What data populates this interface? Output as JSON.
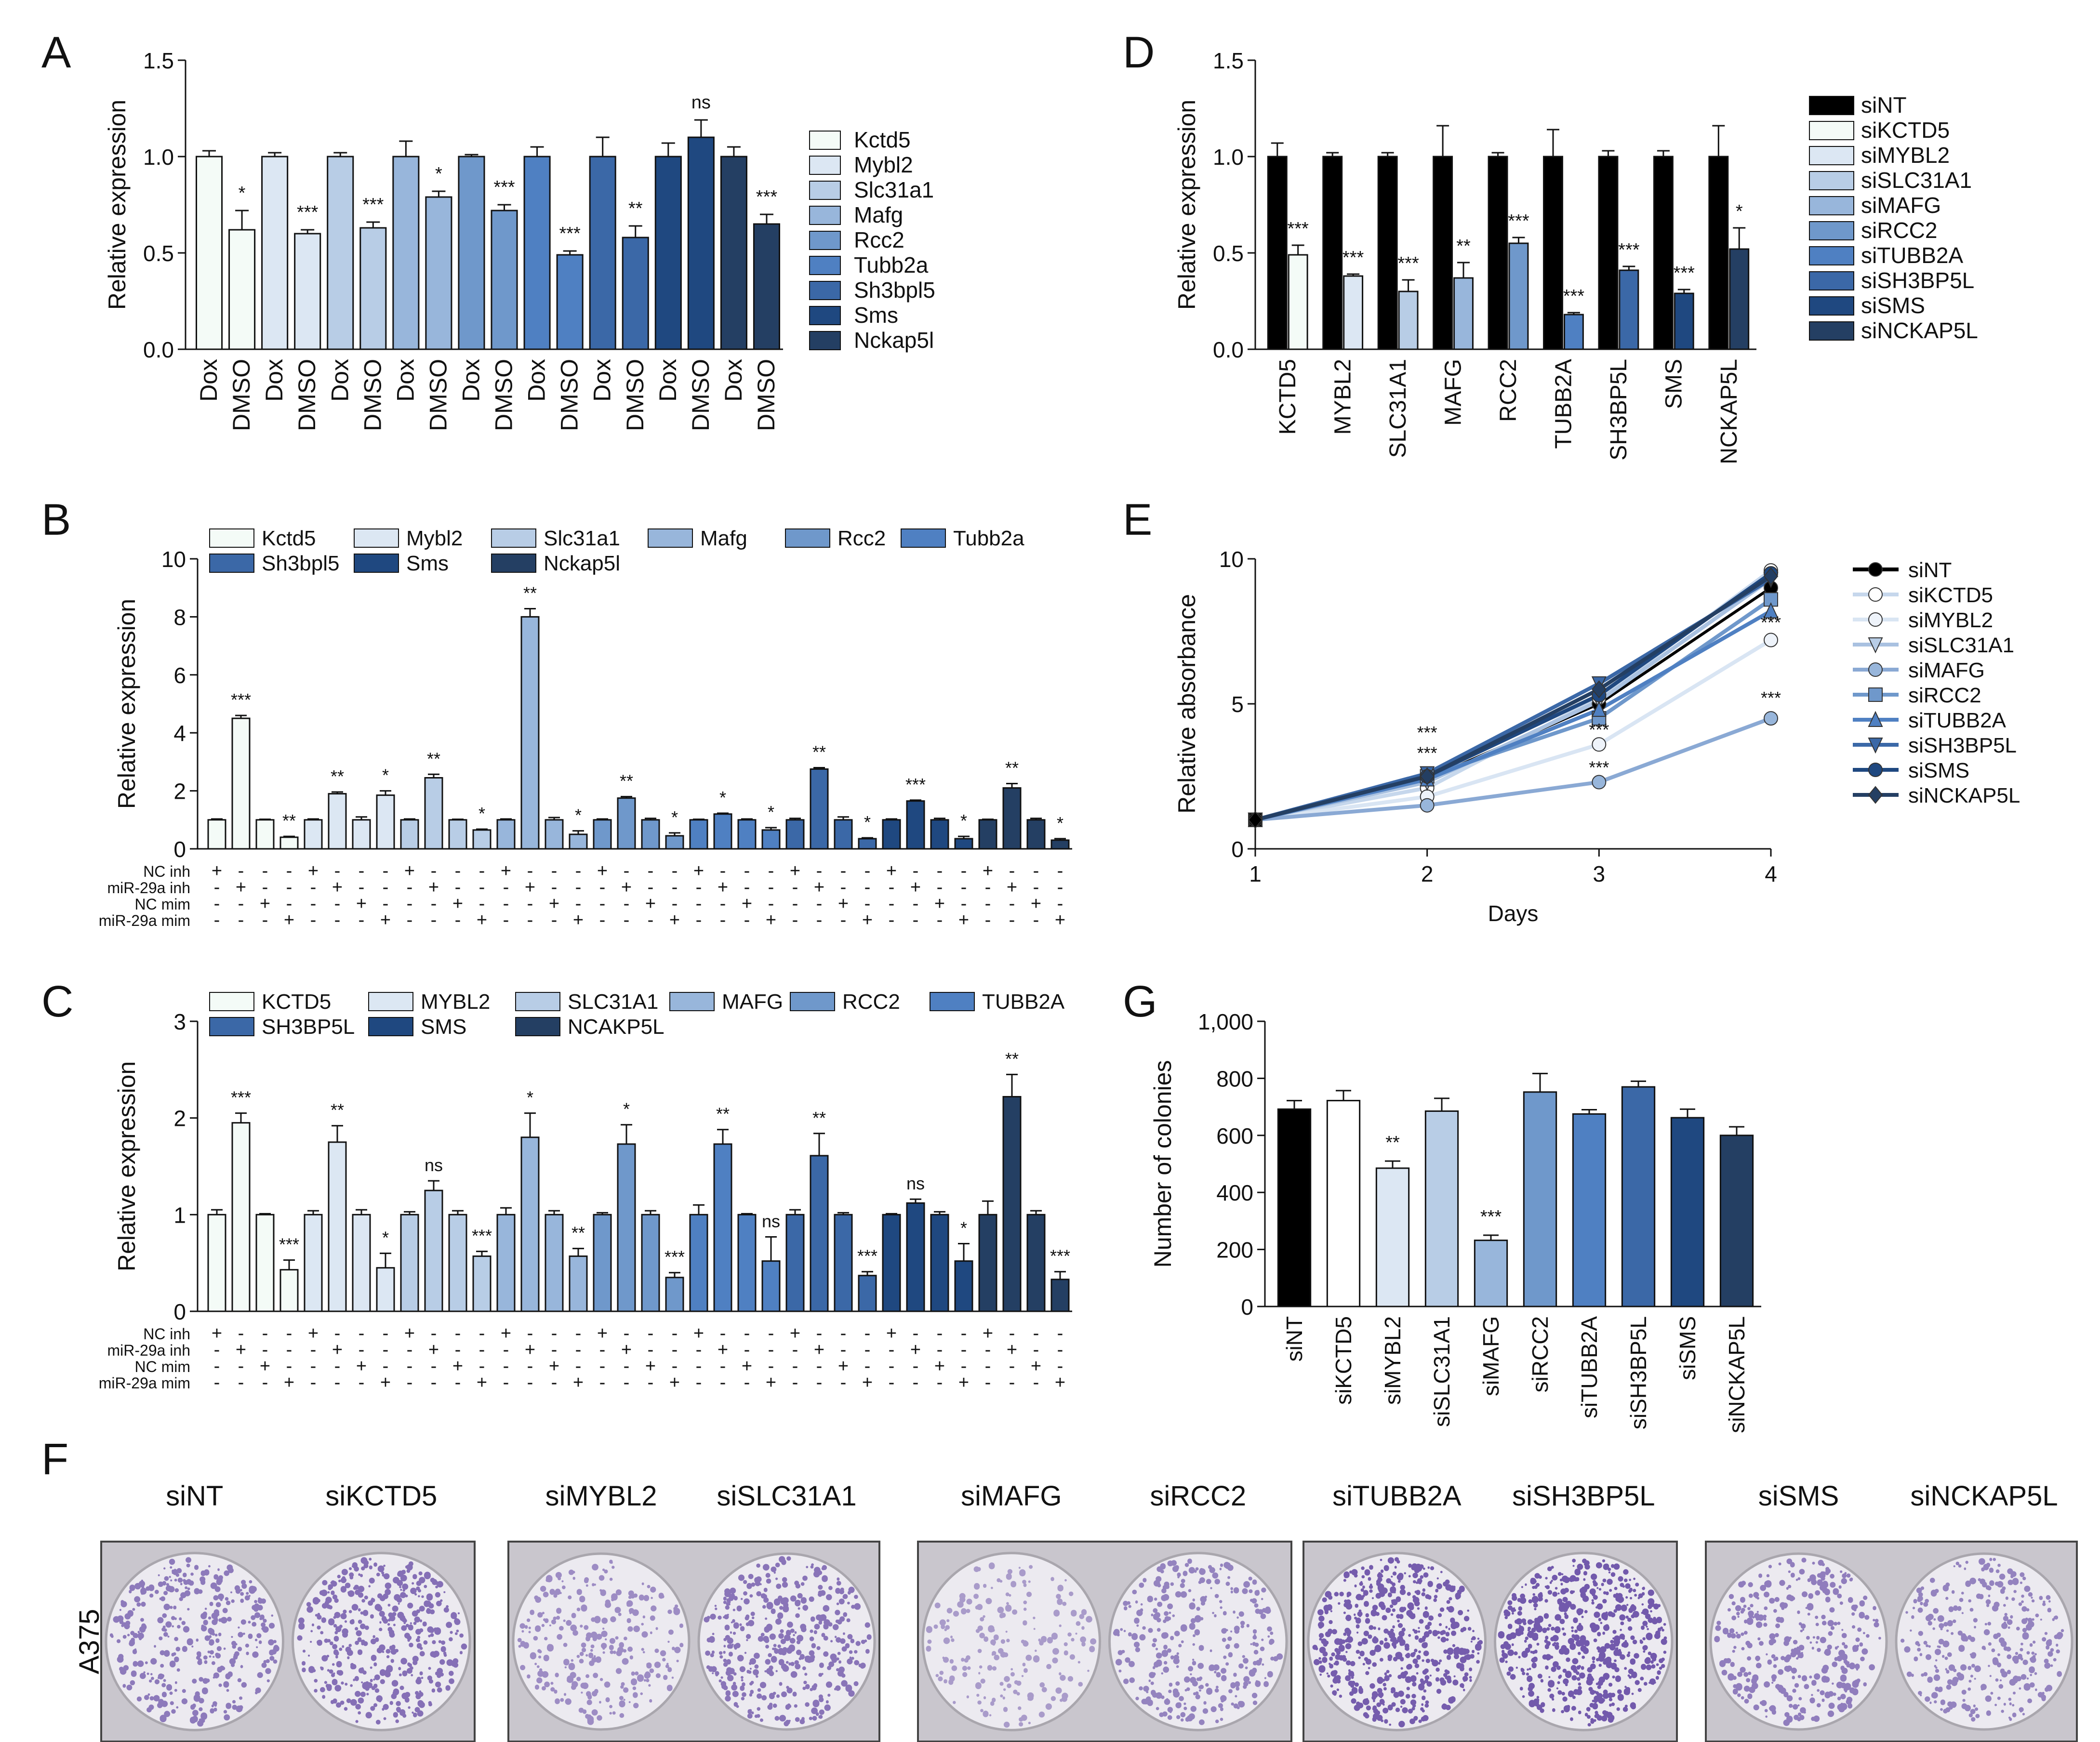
{
  "palette": [
    "#f4fbf7",
    "#dce7f3",
    "#b8cde6",
    "#98b6db",
    "#6f98cb",
    "#4f80c2",
    "#3b68a7",
    "#1f4880",
    "#243f63"
  ],
  "ink": "#111111",
  "siNT_color": "#000000",
  "letters": {
    "A": "A",
    "B": "B",
    "C": "C",
    "D": "D",
    "E": "E",
    "F": "F",
    "G": "G"
  },
  "plates": {
    "row_label": "A375",
    "labels": [
      "siNT",
      "siKCTD5",
      "siMYBL2",
      "siSLC31A1",
      "siMAFG",
      "siRCC2",
      "siTUBB2A",
      "siSH3BP5L",
      "siSMS",
      "siNCKAP5L"
    ],
    "stain": "#5a3d9e",
    "density": [
      0.55,
      0.65,
      0.35,
      0.6,
      0.2,
      0.45,
      0.85,
      0.9,
      0.5,
      0.45
    ]
  },
  "chart_data": [
    {
      "id": "A",
      "type": "bar",
      "ylabel": "Relative expression",
      "ylim": [
        0,
        1.5
      ],
      "yticks": [
        "0.0",
        "0.5",
        "1.0",
        "1.5"
      ],
      "genes": [
        "Kctd5",
        "Mybl2",
        "Slc31a1",
        "Mafg",
        "Rcc2",
        "Tubb2a",
        "Sh3bpl5",
        "Sms",
        "Nckap5l"
      ],
      "bar_labels": [
        "Dox",
        "DMSO"
      ],
      "values": [
        [
          1.0,
          0.62
        ],
        [
          1.0,
          0.6
        ],
        [
          1.0,
          0.63
        ],
        [
          1.0,
          0.79
        ],
        [
          1.0,
          0.72
        ],
        [
          1.0,
          0.49
        ],
        [
          1.0,
          0.58
        ],
        [
          1.0,
          1.1
        ],
        [
          1.0,
          0.65
        ]
      ],
      "errors": [
        [
          0.03,
          0.1
        ],
        [
          0.02,
          0.02
        ],
        [
          0.02,
          0.03
        ],
        [
          0.08,
          0.03
        ],
        [
          0.01,
          0.03
        ],
        [
          0.05,
          0.02
        ],
        [
          0.1,
          0.06
        ],
        [
          0.07,
          0.09
        ],
        [
          0.05,
          0.05
        ]
      ],
      "sig": [
        "*",
        "***",
        "***",
        "*",
        "***",
        "***",
        "**",
        "ns",
        "***"
      ]
    },
    {
      "id": "B",
      "type": "bar",
      "ylabel": "Relative expression",
      "ylim": [
        0,
        10
      ],
      "yticks": [
        "0",
        "2",
        "4",
        "6",
        "8",
        "10"
      ],
      "genes": [
        "Kctd5",
        "Mybl2",
        "Slc31a1",
        "Mafg",
        "Rcc2",
        "Tubb2a",
        "Sh3bpl5",
        "Sms",
        "Nckap5l"
      ],
      "values": [
        [
          1.0,
          4.5,
          1.0,
          0.4
        ],
        [
          1.0,
          1.9,
          1.0,
          1.85
        ],
        [
          1.0,
          2.45,
          1.0,
          0.65
        ],
        [
          1.0,
          8.0,
          1.0,
          0.5
        ],
        [
          1.0,
          1.75,
          1.0,
          0.45
        ],
        [
          1.0,
          1.2,
          1.0,
          0.65
        ],
        [
          1.0,
          2.75,
          1.0,
          0.35
        ],
        [
          1.0,
          1.65,
          1.0,
          0.35
        ],
        [
          1.0,
          2.1,
          1.0,
          0.3
        ]
      ],
      "errors": [
        [
          0.03,
          0.1,
          0.02,
          0.03
        ],
        [
          0.03,
          0.06,
          0.1,
          0.15
        ],
        [
          0.03,
          0.12,
          0.02,
          0.03
        ],
        [
          0.03,
          0.28,
          0.08,
          0.12
        ],
        [
          0.03,
          0.05,
          0.05,
          0.1
        ],
        [
          0.02,
          0.03,
          0.03,
          0.08
        ],
        [
          0.05,
          0.05,
          0.1,
          0.03
        ],
        [
          0.03,
          0.03,
          0.05,
          0.08
        ],
        [
          0.02,
          0.15,
          0.05,
          0.05
        ]
      ],
      "sig": [
        [
          "",
          "***",
          "",
          "**"
        ],
        [
          "",
          "**",
          "",
          "*"
        ],
        [
          "",
          "**",
          "",
          "*"
        ],
        [
          "",
          "**",
          "",
          "*"
        ],
        [
          "",
          "**",
          "",
          "*"
        ],
        [
          "",
          "*",
          "",
          "*"
        ],
        [
          "",
          "**",
          "",
          "*"
        ],
        [
          "",
          "***",
          "",
          "*"
        ],
        [
          "",
          "**",
          "",
          "*"
        ]
      ],
      "row_labels": [
        "NC inh",
        "miR-29a inh",
        "NC mim",
        "miR-29a mim"
      ]
    },
    {
      "id": "C",
      "type": "bar",
      "ylabel": "Relative expression",
      "ylim": [
        0,
        3
      ],
      "yticks": [
        "0",
        "1",
        "2",
        "3"
      ],
      "genes": [
        "KCTD5",
        "MYBL2",
        "SLC31A1",
        "MAFG",
        "RCC2",
        "TUBB2A",
        "SH3BP5L",
        "SMS",
        "NCAKP5L"
      ],
      "values": [
        [
          1.0,
          1.95,
          1.0,
          0.43
        ],
        [
          1.0,
          1.75,
          1.0,
          0.45
        ],
        [
          1.0,
          1.25,
          1.0,
          0.57
        ],
        [
          1.0,
          1.8,
          1.0,
          0.57
        ],
        [
          1.0,
          1.73,
          1.0,
          0.35
        ],
        [
          1.0,
          1.73,
          1.0,
          0.52
        ],
        [
          1.0,
          1.61,
          1.0,
          0.37
        ],
        [
          1.0,
          1.12,
          1.0,
          0.52
        ],
        [
          1.0,
          2.22,
          1.0,
          0.33
        ]
      ],
      "errors": [
        [
          0.05,
          0.1,
          0.01,
          0.1
        ],
        [
          0.04,
          0.17,
          0.05,
          0.15
        ],
        [
          0.03,
          0.1,
          0.04,
          0.05
        ],
        [
          0.07,
          0.25,
          0.04,
          0.08
        ],
        [
          0.02,
          0.2,
          0.04,
          0.05
        ],
        [
          0.1,
          0.15,
          0.01,
          0.25
        ],
        [
          0.05,
          0.23,
          0.02,
          0.04
        ],
        [
          0.01,
          0.04,
          0.03,
          0.18
        ],
        [
          0.14,
          0.23,
          0.04,
          0.08
        ]
      ],
      "sig": [
        [
          "",
          "***",
          "",
          "***"
        ],
        [
          "",
          "**",
          "",
          "*"
        ],
        [
          "",
          "ns",
          "",
          "***"
        ],
        [
          "",
          "*",
          "",
          "**"
        ],
        [
          "",
          "*",
          "",
          "***"
        ],
        [
          "",
          "**",
          "",
          "ns"
        ],
        [
          "",
          "**",
          "",
          "***"
        ],
        [
          "",
          "ns",
          "",
          "*"
        ],
        [
          "",
          "**",
          "",
          "***"
        ]
      ],
      "row_labels": [
        "NC inh",
        "miR-29a inh",
        "NC mim",
        "miR-29a mim"
      ]
    },
    {
      "id": "D",
      "type": "bar",
      "ylabel": "Relative expression",
      "ylim": [
        0,
        1.5
      ],
      "yticks": [
        "0.0",
        "0.5",
        "1.0",
        "1.5"
      ],
      "genes": [
        "KCTD5",
        "MYBL2",
        "SLC31A1",
        "MAFG",
        "RCC2",
        "TUBB2A",
        "SH3BP5L",
        "SMS",
        "NCKAP5L"
      ],
      "legend": [
        "siNT",
        "siKCTD5",
        "siMYBL2",
        "siSLC31A1",
        "siMAFG",
        "siRCC2",
        "siTUBB2A",
        "siSH3BP5L",
        "siSMS",
        "siNCKAP5L"
      ],
      "values": [
        [
          1.0,
          0.49
        ],
        [
          1.0,
          0.38
        ],
        [
          1.0,
          0.3
        ],
        [
          1.0,
          0.37
        ],
        [
          1.0,
          0.55
        ],
        [
          1.0,
          0.18
        ],
        [
          1.0,
          0.41
        ],
        [
          1.0,
          0.29
        ],
        [
          1.0,
          0.52
        ]
      ],
      "errors": [
        [
          0.07,
          0.05
        ],
        [
          0.02,
          0.01
        ],
        [
          0.02,
          0.06
        ],
        [
          0.16,
          0.08
        ],
        [
          0.02,
          0.03
        ],
        [
          0.14,
          0.01
        ],
        [
          0.03,
          0.02
        ],
        [
          0.03,
          0.02
        ],
        [
          0.16,
          0.11
        ]
      ],
      "sig": [
        "***",
        "***",
        "***",
        "**",
        "***",
        "***",
        "***",
        "***",
        "*"
      ]
    },
    {
      "id": "E",
      "type": "line",
      "xlabel": "Days",
      "ylabel": "Relative absorbance",
      "x": [
        1,
        2,
        3,
        4
      ],
      "xticks": [
        "1",
        "2",
        "3",
        "4"
      ],
      "ylim": [
        0,
        10
      ],
      "yticks": [
        "0",
        "5",
        "10"
      ],
      "series": [
        {
          "name": "siNT",
          "values": [
            1.0,
            2.4,
            5.0,
            9.0
          ]
        },
        {
          "name": "siKCTD5",
          "values": [
            1.0,
            2.1,
            5.2,
            9.6
          ]
        },
        {
          "name": "siMYBL2",
          "values": [
            1.0,
            1.8,
            3.6,
            7.2
          ]
        },
        {
          "name": "siSLC31A1",
          "values": [
            1.0,
            2.3,
            5.1,
            9.3
          ]
        },
        {
          "name": "siMAFG",
          "values": [
            1.0,
            1.5,
            2.3,
            4.5
          ]
        },
        {
          "name": "siRCC2",
          "values": [
            1.0,
            2.5,
            4.5,
            8.6
          ]
        },
        {
          "name": "siTUBB2A",
          "values": [
            1.0,
            2.4,
            4.8,
            8.2
          ]
        },
        {
          "name": "siSH3BP5L",
          "values": [
            1.0,
            2.6,
            5.7,
            9.3
          ]
        },
        {
          "name": "siSMS",
          "values": [
            1.0,
            2.5,
            5.3,
            9.5
          ]
        },
        {
          "name": "siNCKAP5L",
          "values": [
            1.0,
            2.5,
            5.5,
            9.4
          ]
        }
      ],
      "annotations": [
        {
          "x": 2,
          "y": 3.8,
          "text": "***"
        },
        {
          "x": 2,
          "y": 3.1,
          "text": "***"
        },
        {
          "x": 3,
          "y": 3.9,
          "text": "***"
        },
        {
          "x": 3,
          "y": 2.6,
          "text": "***"
        },
        {
          "x": 4,
          "y": 7.6,
          "text": "***"
        },
        {
          "x": 4,
          "y": 5.0,
          "text": "***"
        }
      ]
    },
    {
      "id": "G",
      "type": "bar",
      "ylabel": "Number of colonies",
      "ylim": [
        0,
        1000
      ],
      "yticks": [
        "0",
        "200",
        "400",
        "600",
        "800",
        "1,000"
      ],
      "categories": [
        "siNT",
        "siKCTD5",
        "siMYBL2",
        "siSLC31A1",
        "siMAFG",
        "siRCC2",
        "siTUBB2A",
        "siSH3BP5L",
        "siSMS",
        "siNCKAP5L"
      ],
      "values": [
        692,
        722,
        485,
        685,
        232,
        752,
        675,
        770,
        662,
        600
      ],
      "errors": [
        30,
        35,
        25,
        45,
        18,
        65,
        15,
        20,
        30,
        30
      ],
      "sig": [
        "",
        "",
        "**",
        "",
        "***",
        "",
        "",
        "",
        "",
        ""
      ]
    }
  ]
}
